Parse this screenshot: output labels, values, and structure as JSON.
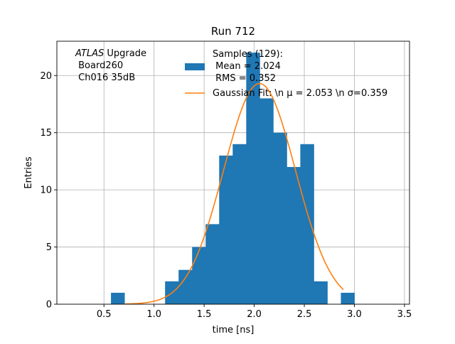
{
  "chart_data": {
    "type": "bar",
    "title": "Run 712",
    "xlabel": "time [ns]",
    "ylabel": "Entries",
    "xlim": [
      0.03,
      3.55
    ],
    "ylim": [
      0,
      23
    ],
    "xticks": [
      0.5,
      1.0,
      1.5,
      2.0,
      2.5,
      3.0,
      3.5
    ],
    "xtick_labels": [
      "0.5",
      "1.0",
      "1.5",
      "2.0",
      "2.5",
      "3.0",
      "3.5"
    ],
    "yticks": [
      0,
      5,
      10,
      15,
      20
    ],
    "ytick_labels": [
      "0",
      "5",
      "10",
      "15",
      "20"
    ],
    "grid": true,
    "bin_width": 0.135,
    "bin_starts": [
      0.57,
      0.705,
      0.84,
      0.975,
      1.11,
      1.245,
      1.38,
      1.515,
      1.65,
      1.785,
      1.92,
      2.055,
      2.19,
      2.325,
      2.46,
      2.595,
      2.73,
      2.865
    ],
    "counts": [
      1,
      0,
      0,
      0,
      2,
      3,
      5,
      7,
      13,
      14,
      22,
      18,
      15,
      12,
      14,
      2,
      0,
      1
    ],
    "bar_color": "#1f77b4",
    "fit": {
      "mu": 2.053,
      "sigma": 0.359,
      "amplitude": 19.3,
      "x_range": [
        0.7,
        2.89
      ],
      "color": "#ff7f0e"
    },
    "annotation": {
      "lines": [
        "ATLAS Upgrade",
        " Board260",
        " Ch016 35dB"
      ]
    },
    "legend": {
      "placement": "top-right",
      "entries": [
        {
          "type": "patch",
          "color": "#1f77b4",
          "lines": [
            "Samples (129):",
            " Mean = 2.024",
            " RMS = 0.352"
          ]
        },
        {
          "type": "line",
          "color": "#ff7f0e",
          "lines": [
            "Gaussian Fit: \\n μ = 2.053 \\n σ=0.359"
          ]
        }
      ]
    }
  }
}
